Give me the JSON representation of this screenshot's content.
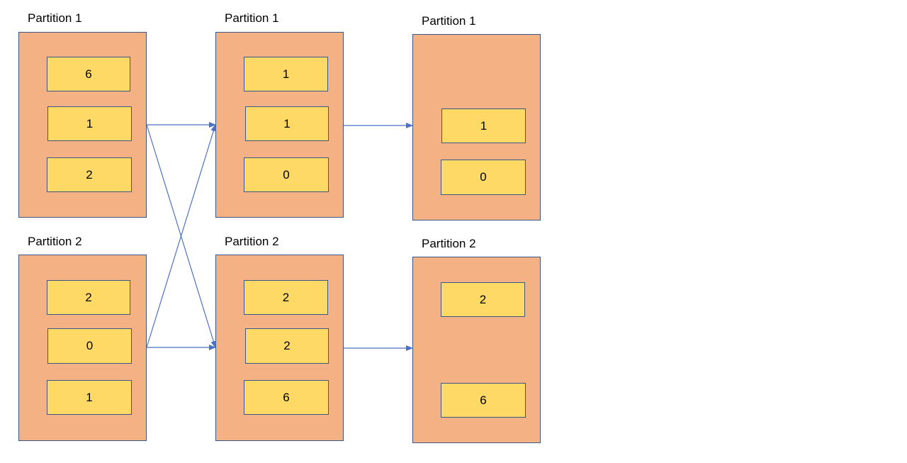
{
  "colors": {
    "partition_fill": "#f4b183",
    "cell_fill": "#ffd966",
    "border": "#3b5785",
    "arrow": "#4a72c4"
  },
  "stages": [
    {
      "partitions": [
        {
          "label": "Partition 1",
          "values": [
            "6",
            "1",
            "2"
          ]
        },
        {
          "label": "Partition 2",
          "values": [
            "2",
            "0",
            "1"
          ]
        }
      ]
    },
    {
      "partitions": [
        {
          "label": "Partition 1",
          "values": [
            "1",
            "1",
            "0"
          ]
        },
        {
          "label": "Partition 2",
          "values": [
            "2",
            "2",
            "6"
          ]
        }
      ]
    },
    {
      "partitions": [
        {
          "label": "Partition 1",
          "values": [
            "1",
            "0"
          ]
        },
        {
          "label": "Partition 2",
          "values": [
            "2",
            "6"
          ]
        }
      ]
    }
  ],
  "edges": [
    {
      "from": "stage-1-partition-1",
      "to": "stage-2-partition-1"
    },
    {
      "from": "stage-1-partition-1",
      "to": "stage-2-partition-2"
    },
    {
      "from": "stage-1-partition-2",
      "to": "stage-2-partition-1"
    },
    {
      "from": "stage-1-partition-2",
      "to": "stage-2-partition-2"
    },
    {
      "from": "stage-2-partition-1",
      "to": "stage-3-partition-1"
    },
    {
      "from": "stage-2-partition-2",
      "to": "stage-3-partition-2"
    }
  ]
}
